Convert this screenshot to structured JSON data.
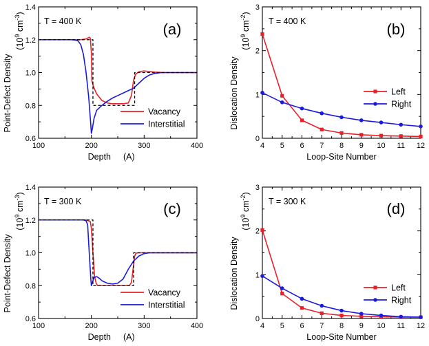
{
  "chart_data": [
    {
      "id": "a",
      "type": "line",
      "panel_label": "(a)",
      "temperature_label": "T = 400 K",
      "xlabel": "Depth",
      "xunit": "(A)",
      "ylabel": "Point-Defect Density",
      "yunit_lead": "(10",
      "yunit_exp1": "9",
      "yunit_mid": " cm",
      "yunit_exp2": "-3",
      "yunit_tail": ")",
      "xlim": [
        100,
        400
      ],
      "ylim": [
        0.6,
        1.4
      ],
      "xticks": [
        "100",
        "200",
        "300",
        "400"
      ],
      "yticks": [
        "0.6",
        "0.8",
        "1.0",
        "1.2",
        "1.4"
      ],
      "legend": "bottom-right",
      "series": [
        {
          "name": "Vacancy",
          "color": "#e8202a",
          "markers": false,
          "x": [
            100,
            150,
            180,
            190,
            196,
            198,
            200,
            201,
            204,
            210,
            220,
            230,
            240,
            250,
            260,
            270,
            276,
            280,
            284,
            290,
            300,
            320,
            340,
            400
          ],
          "y": [
            1.2,
            1.2,
            1.2,
            1.205,
            1.215,
            1.21,
            1.12,
            0.95,
            0.915,
            0.87,
            0.83,
            0.815,
            0.81,
            0.81,
            0.81,
            0.815,
            0.86,
            0.955,
            0.99,
            1.005,
            1.01,
            1.003,
            1.0,
            1.0
          ]
        },
        {
          "name": "Interstitial",
          "color": "#1a1adc",
          "markers": false,
          "x": [
            100,
            160,
            170,
            175,
            180,
            185,
            190,
            195,
            199,
            200,
            202,
            205,
            210,
            220,
            230,
            240,
            250,
            260,
            270,
            280,
            290,
            300,
            310,
            320,
            330,
            340,
            360,
            400
          ],
          "y": [
            1.2,
            1.2,
            1.198,
            1.192,
            1.17,
            1.11,
            1.0,
            0.85,
            0.68,
            0.63,
            0.66,
            0.72,
            0.77,
            0.8,
            0.825,
            0.845,
            0.86,
            0.875,
            0.89,
            0.905,
            0.935,
            0.965,
            0.985,
            0.995,
            0.999,
            1.0,
            1.0,
            1.0
          ]
        },
        {
          "name": "Profile",
          "color": "#000000",
          "dashed": true,
          "show_in_legend": false,
          "x": [
            100,
            203,
            203,
            228,
            228,
            282,
            282,
            400
          ],
          "y": [
            1.2,
            1.2,
            0.8,
            0.8,
            0.8,
            0.8,
            1.0,
            1.0
          ]
        }
      ]
    },
    {
      "id": "b",
      "type": "line",
      "panel_label": "(b)",
      "temperature_label": "T = 400 K",
      "xlabel": "Loop-Site Number",
      "ylabel": "Dislocation Density",
      "yunit_lead": "(10",
      "yunit_exp1": "9",
      "yunit_mid": " cm",
      "yunit_exp2": "-2",
      "yunit_tail": ")",
      "xlim": [
        4,
        12
      ],
      "ylim": [
        0,
        3
      ],
      "xticks": [
        "4",
        "5",
        "6",
        "7",
        "8",
        "9",
        "10",
        "11",
        "12"
      ],
      "yticks": [
        "0",
        "1",
        "2",
        "3"
      ],
      "legend": "center-right",
      "series": [
        {
          "name": "Left",
          "color": "#e8202a",
          "marker": "square",
          "x": [
            4,
            5,
            6,
            7,
            8,
            9,
            10,
            11,
            12
          ],
          "y": [
            2.38,
            0.97,
            0.41,
            0.2,
            0.12,
            0.08,
            0.06,
            0.05,
            0.04
          ]
        },
        {
          "name": "Right",
          "color": "#1a1adc",
          "marker": "circle",
          "x": [
            4,
            5,
            6,
            7,
            8,
            9,
            10,
            11,
            12
          ],
          "y": [
            1.04,
            0.82,
            0.68,
            0.57,
            0.48,
            0.41,
            0.36,
            0.31,
            0.27
          ]
        }
      ]
    },
    {
      "id": "c",
      "type": "line",
      "panel_label": "(c)",
      "temperature_label": "T = 300 K",
      "xlabel": "Depth",
      "xunit": "(A)",
      "ylabel": "Point-Defect Density",
      "yunit_lead": "(10",
      "yunit_exp1": "9",
      "yunit_mid": " cm",
      "yunit_exp2": "-3",
      "yunit_tail": ")",
      "xlim": [
        100,
        400
      ],
      "ylim": [
        0.6,
        1.4
      ],
      "xticks": [
        "100",
        "200",
        "300",
        "400"
      ],
      "yticks": [
        "0.6",
        "0.8",
        "1.0",
        "1.2",
        "1.4"
      ],
      "legend": "bottom-right",
      "series": [
        {
          "name": "Vacancy",
          "color": "#e8202a",
          "markers": false,
          "x": [
            100,
            190,
            198,
            200,
            203,
            206,
            209,
            212,
            220,
            240,
            260,
            272,
            276,
            279,
            282,
            285,
            290,
            400
          ],
          "y": [
            1.2,
            1.2,
            1.19,
            1.15,
            1.0,
            0.86,
            0.815,
            0.8,
            0.8,
            0.8,
            0.8,
            0.8,
            0.82,
            0.9,
            0.98,
            0.998,
            1.0,
            1.0
          ]
        },
        {
          "name": "Interstitial",
          "color": "#1a1adc",
          "markers": false,
          "x": [
            100,
            185,
            190,
            193,
            196,
            199,
            200,
            202,
            205,
            210,
            215,
            220,
            230,
            240,
            250,
            260,
            270,
            280,
            290,
            300,
            310,
            320,
            400
          ],
          "y": [
            1.2,
            1.2,
            1.195,
            1.17,
            1.0,
            0.84,
            0.8,
            0.82,
            0.85,
            0.855,
            0.845,
            0.83,
            0.815,
            0.81,
            0.815,
            0.84,
            0.9,
            0.95,
            0.98,
            0.995,
            1.0,
            1.0,
            1.0
          ]
        },
        {
          "name": "Profile",
          "color": "#000000",
          "dashed": true,
          "show_in_legend": false,
          "x": [
            100,
            203,
            203,
            228,
            228,
            280,
            280,
            400
          ],
          "y": [
            1.2,
            1.2,
            0.8,
            0.8,
            0.8,
            0.8,
            1.0,
            1.0
          ]
        }
      ]
    },
    {
      "id": "d",
      "type": "line",
      "panel_label": "(d)",
      "temperature_label": "T = 300 K",
      "xlabel": "Loop-Site Number",
      "ylabel": "Dislocation Density",
      "yunit_lead": "(10",
      "yunit_exp1": "9",
      "yunit_mid": " cm",
      "yunit_exp2": "-2",
      "yunit_tail": ")",
      "xlim": [
        4,
        12
      ],
      "ylim": [
        0,
        3
      ],
      "xticks": [
        "4",
        "5",
        "6",
        "7",
        "8",
        "9",
        "10",
        "11",
        "12"
      ],
      "yticks": [
        "0",
        "1",
        "2",
        "3"
      ],
      "legend": "bottom-right",
      "series": [
        {
          "name": "Left",
          "color": "#e8202a",
          "marker": "square",
          "x": [
            4,
            5,
            6,
            7,
            8,
            9,
            10,
            11,
            12
          ],
          "y": [
            2.02,
            0.57,
            0.24,
            0.12,
            0.07,
            0.05,
            0.04,
            0.03,
            0.03
          ]
        },
        {
          "name": "Right",
          "color": "#1a1adc",
          "marker": "circle",
          "x": [
            4,
            5,
            6,
            7,
            8,
            9,
            10,
            11,
            12
          ],
          "y": [
            0.97,
            0.69,
            0.45,
            0.29,
            0.18,
            0.11,
            0.07,
            0.04,
            0.03
          ]
        }
      ]
    }
  ]
}
